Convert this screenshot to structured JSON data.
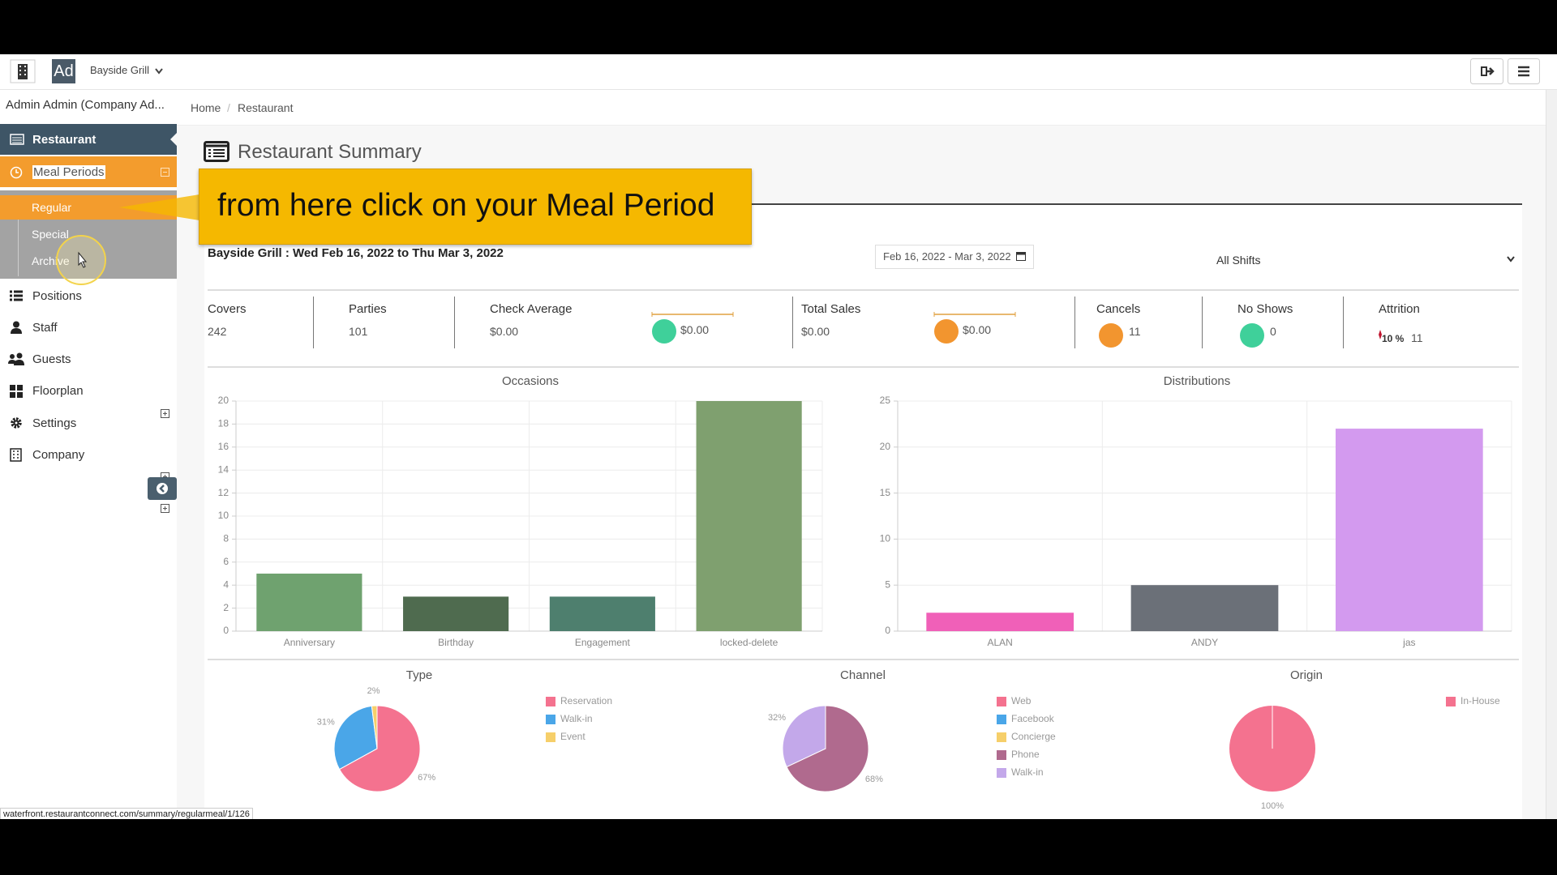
{
  "topbar": {
    "logo": "Ad",
    "restaurant": "Bayside Grill"
  },
  "user": "Admin Admin (Company Ad...",
  "breadcrumb": [
    "Home",
    "Restaurant"
  ],
  "sidebar": {
    "items": [
      "Restaurant",
      "Meal Periods",
      "Positions",
      "Staff",
      "Guests",
      "Floorplan",
      "Settings",
      "Company"
    ],
    "submenu": [
      "Regular",
      "Special",
      "Archive"
    ]
  },
  "callout": "from here click on your Meal Period",
  "page_title": "Restaurant Summary",
  "summary": {
    "heading": "Bayside Grill : Wed Feb 16, 2022 to Thu Mar 3, 2022",
    "date_range": "Feb 16, 2022 - Mar 3, 2022",
    "shift": "All Shifts"
  },
  "stats": [
    {
      "label": "Covers",
      "value": 242
    },
    {
      "label": "Parties",
      "value": 101
    },
    {
      "label": "Check Average",
      "value": "$0.00",
      "indicator": "$0.00",
      "indicator_color": "#3fd09a"
    },
    {
      "label": "Total Sales",
      "value": "$0.00",
      "indicator": "$0.00",
      "indicator_color": "#f2952f"
    },
    {
      "label": "Cancels",
      "value": 11,
      "indicator_color": "#f2952f"
    },
    {
      "label": "No Shows",
      "value": 0,
      "indicator_color": "#3fd09a"
    },
    {
      "label": "Attrition",
      "percent": "10 %",
      "value": 11
    }
  ],
  "charts": [
    {
      "type": "bar",
      "title": "Occasions",
      "categories": [
        "Anniversary",
        "Birthday",
        "Engagement",
        "locked-delete"
      ],
      "values": [
        5,
        3,
        3,
        20
      ],
      "colors": [
        "#6fa26f",
        "#4f6b4f",
        "#4e7f6e",
        "#7fa06f"
      ],
      "ylim": [
        0,
        20
      ],
      "yticks": [
        0,
        2,
        4,
        6,
        8,
        10,
        12,
        14,
        16,
        18,
        20
      ],
      "grid": true
    },
    {
      "type": "bar",
      "title": "Distributions",
      "categories": [
        "ALAN",
        "ANDY",
        "jas"
      ],
      "values": [
        2,
        5,
        22
      ],
      "colors": [
        "#f060b8",
        "#6b7078",
        "#d39aef"
      ],
      "ylim": [
        0,
        25
      ],
      "yticks": [
        0,
        5,
        10,
        15,
        20,
        25
      ],
      "grid": true
    },
    {
      "type": "pie",
      "title": "Type",
      "categories": [
        "Reservation",
        "Walk-in",
        "Event"
      ],
      "values": [
        67,
        31,
        2
      ],
      "value_labels": [
        "67%",
        "31%",
        "2%"
      ],
      "colors": [
        "#f4728f",
        "#4aa6e8",
        "#f6cf6a"
      ]
    },
    {
      "type": "pie",
      "title": "Channel",
      "categories": [
        "Web",
        "Facebook",
        "Concierge",
        "Phone",
        "Walk-in"
      ],
      "values": [
        0,
        0,
        0,
        68,
        32
      ],
      "value_labels": [
        null,
        null,
        null,
        "68%",
        "32%"
      ],
      "colors": [
        "#f4728f",
        "#4aa6e8",
        "#f6cf6a",
        "#b06a8e",
        "#c3a8ea"
      ]
    },
    {
      "type": "pie",
      "title": "Origin",
      "categories": [
        "In-House"
      ],
      "values": [
        100
      ],
      "value_labels": [
        "100%"
      ],
      "colors": [
        "#f4728f"
      ]
    }
  ],
  "status_url": "waterfront.restaurantconnect.com/summary/regularmeal/1/126"
}
